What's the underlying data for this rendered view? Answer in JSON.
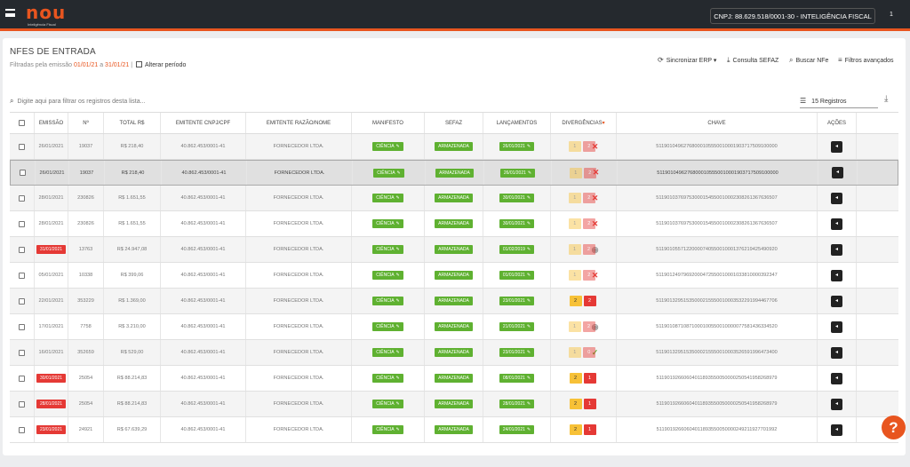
{
  "app": {
    "logo": "nou",
    "logo_tagline": "Inteligência Fiscal",
    "company": "CNPJ: 88.629.518/0001-30 - INTELIGÊNCIA FISCAL",
    "notification_count": "1"
  },
  "page": {
    "title": "NFES DE ENTRADA",
    "filter_prefix": "Filtradas pela emissão",
    "date_from": "01/01/21",
    "date_sep": "a",
    "date_to": "31/01/21",
    "change_period": "Alterar período"
  },
  "actions": {
    "sync": "Sincronizar ERP",
    "sefaz": "Consulta SEFAZ",
    "search_nfe": "Buscar NFe",
    "filters": "Filtros avançados"
  },
  "search": {
    "placeholder": "Digite aqui para filtrar os registros desta lista..."
  },
  "records": "15 Registros",
  "columns": [
    "EMISSÃO",
    "Nº",
    "TOTAL R$",
    "EMITENTE CNPJ/CPF",
    "EMITENTE RAZÃO/NOME",
    "MANIFESTO",
    "SEFAZ",
    "LANÇAMENTOS",
    "DIVERGÊNCIAS",
    "CHAVE",
    "AÇÕES"
  ],
  "rows": [
    {
      "emissao": "26/01/2021",
      "emissao_red": false,
      "num": "19037",
      "total": "R$ 218,40",
      "cnpj": "40.862.453/0001-41",
      "nome": "FORNECEDOR LTDA.",
      "manifesto": "CIÊNCIA",
      "sefaz": "ARMAZENADA",
      "lanc": "26/01/2021",
      "div1": "1",
      "div2": "2",
      "overlay": "x",
      "faded": true,
      "chave": "51190104962768000105550010001903717509100000",
      "selected": false,
      "gray": true
    },
    {
      "emissao": "26/01/2021",
      "emissao_red": false,
      "num": "19037",
      "total": "R$ 218,40",
      "cnpj": "40.862.453/0001-41",
      "nome": "FORNECEDOR LTDA.",
      "manifesto": "CIÊNCIA",
      "sefaz": "ARMAZENADA",
      "lanc": "26/01/2021",
      "div1": "1",
      "div2": "2",
      "overlay": "x",
      "faded": true,
      "chave": "51190104962768000105550010001903717509100000",
      "selected": true,
      "gray": false
    },
    {
      "emissao": "28/01/2021",
      "emissao_red": false,
      "num": "230826",
      "total": "R$ 1.651,55",
      "cnpj": "40.862.453/0001-41",
      "nome": "FORNECEDOR LTDA.",
      "manifesto": "CIÊNCIA",
      "sefaz": "ARMAZENADA",
      "lanc": "30/01/2021",
      "div1": "1",
      "div2": "2",
      "overlay": "x",
      "faded": true,
      "chave": "51190103769753000154550010002308261367636507",
      "selected": false,
      "gray": true
    },
    {
      "emissao": "28/01/2021",
      "emissao_red": false,
      "num": "230826",
      "total": "R$ 1.651,55",
      "cnpj": "40.862.453/0001-41",
      "nome": "FORNECEDOR LTDA.",
      "manifesto": "CIÊNCIA",
      "sefaz": "ARMAZENADA",
      "lanc": "30/01/2021",
      "div1": "1",
      "div2": "2",
      "overlay": "x",
      "faded": true,
      "chave": "51190103769753000154550010002308261367636507",
      "selected": false,
      "gray": false
    },
    {
      "emissao": "31/01/2021",
      "emissao_red": true,
      "num": "13763",
      "total": "R$ 24.947,08",
      "cnpj": "40.862.453/0001-41",
      "nome": "FORNECEDOR LTDA.",
      "manifesto": "CIÊNCIA",
      "sefaz": "ARMAZENADA",
      "lanc": "01/02/2019",
      "div1": "1",
      "div2": "2",
      "overlay": "eye",
      "faded": true,
      "chave": "51190105571220000740550010001376219425490920",
      "selected": false,
      "gray": true
    },
    {
      "emissao": "05/01/2021",
      "emissao_red": false,
      "num": "10338",
      "total": "R$ 399,06",
      "cnpj": "40.862.453/0001-41",
      "nome": "FORNECEDOR LTDA.",
      "manifesto": "CIÊNCIA",
      "sefaz": "ARMAZENADA",
      "lanc": "01/01/2021",
      "div1": "1",
      "div2": "2",
      "overlay": "x",
      "faded": true,
      "chave": "51190124979692000472550010001033810000392347",
      "selected": false,
      "gray": false
    },
    {
      "emissao": "22/01/2021",
      "emissao_red": false,
      "num": "353229",
      "total": "R$ 1.369,00",
      "cnpj": "40.862.453/0001-41",
      "nome": "FORNECEDOR LTDA.",
      "manifesto": "CIÊNCIA",
      "sefaz": "ARMAZENADA",
      "lanc": "23/01/2021",
      "div1": "2",
      "div2": "2",
      "overlay": "",
      "faded": false,
      "chave": "51190132951535000215550010003532291994467706",
      "selected": false,
      "gray": true
    },
    {
      "emissao": "17/01/2021",
      "emissao_red": false,
      "num": "7758",
      "total": "R$ 3.210,00",
      "cnpj": "40.862.453/0001-41",
      "nome": "FORNECEDOR LTDA.",
      "manifesto": "CIÊNCIA",
      "sefaz": "ARMAZENADA",
      "lanc": "21/01/2021",
      "div1": "1",
      "div2": "2",
      "overlay": "eye",
      "faded": true,
      "chave": "51190108710871000100550010000077581436334520",
      "selected": false,
      "gray": false
    },
    {
      "emissao": "16/01/2021",
      "emissao_red": false,
      "num": "352659",
      "total": "R$ 529,00",
      "cnpj": "40.862.453/0001-41",
      "nome": "FORNECEDOR LTDA.",
      "manifesto": "CIÊNCIA",
      "sefaz": "ARMAZENADA",
      "lanc": "23/01/2021",
      "div1": "1",
      "div2": "0",
      "overlay": "check",
      "faded": true,
      "chave": "51190132951535000215550010003526591996473400",
      "selected": false,
      "gray": true
    },
    {
      "emissao": "30/01/2021",
      "emissao_red": true,
      "num": "25054",
      "total": "R$ 88.214,83",
      "cnpj": "40.862.453/0001-41",
      "nome": "FORNECEDOR LTDA.",
      "manifesto": "CIÊNCIA",
      "sefaz": "ARMAZENADA",
      "lanc": "08/01/2021",
      "div1": "2",
      "div2": "1",
      "overlay": "",
      "faded": false,
      "chave": "51190192660604011893550050000250541958268979",
      "selected": false,
      "gray": false
    },
    {
      "emissao": "28/01/2021",
      "emissao_red": true,
      "num": "25054",
      "total": "R$ 88.214,83",
      "cnpj": "40.862.453/0001-41",
      "nome": "FORNECEDOR LTDA.",
      "manifesto": "CIÊNCIA",
      "sefaz": "ARMAZENADA",
      "lanc": "28/01/2021",
      "div1": "2",
      "div2": "1",
      "overlay": "",
      "faded": false,
      "chave": "51190192660604011893550050000250541958268979",
      "selected": false,
      "gray": true
    },
    {
      "emissao": "23/01/2021",
      "emissao_red": true,
      "num": "24921",
      "total": "R$ 67.639,29",
      "cnpj": "40.862.453/0001-41",
      "nome": "FORNECEDOR LTDA.",
      "manifesto": "CIÊNCIA",
      "sefaz": "ARMAZENADA",
      "lanc": "24/01/2021",
      "div1": "2",
      "div2": "1",
      "overlay": "",
      "faded": false,
      "chave": "51190192660604011893550050000249211927701992",
      "selected": false,
      "gray": false
    }
  ],
  "colors": {
    "accent": "#e8551f",
    "green": "#5fb131",
    "red": "#e53935",
    "yellow": "#f7c137",
    "topbar": "#25292e"
  }
}
